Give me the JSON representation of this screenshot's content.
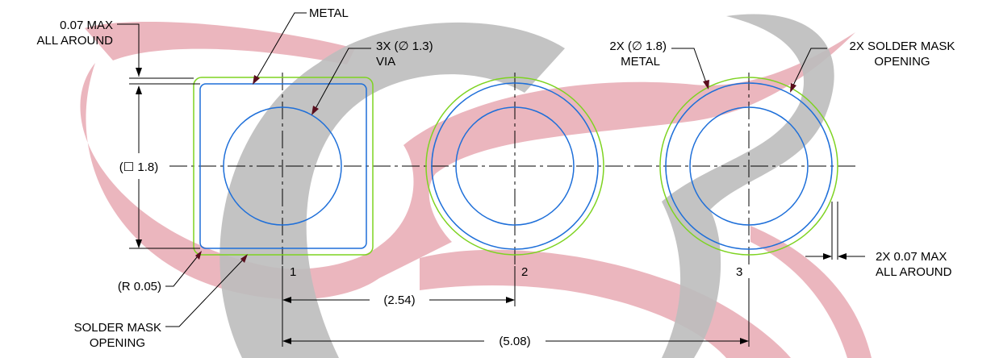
{
  "colors": {
    "background": "#ffffff",
    "metal": "#1e6fd9",
    "solder_mask": "#7ed321",
    "watermark_red": "#e8a9b3",
    "watermark_gray": "#bdbdbd",
    "text": "#000000"
  },
  "labels": {
    "max_all_around_1": "0.07 MAX",
    "max_all_around_2": "ALL AROUND",
    "metal": "METAL",
    "via_1": "3X (∅ 1.3)",
    "via_2": "VIA",
    "metal_circle_1": "2X (∅ 1.8)",
    "metal_circle_2": "METAL",
    "solder_mask_opening_top_1": "2X SOLDER MASK",
    "solder_mask_opening_top_2": "OPENING",
    "square_dim": "(☐ 1.8)",
    "radius": "(R 0.05)",
    "solder_mask_opening_bottom_1": "SOLDER MASK",
    "solder_mask_opening_bottom_2": "OPENING",
    "gap_1": "2X 0.07 MAX",
    "gap_2": "ALL AROUND",
    "pitch": "(2.54)",
    "span": "(5.08)"
  },
  "pins": [
    "1",
    "2",
    "3"
  ],
  "watermark": {
    "type": "stylized logo swoosh"
  }
}
